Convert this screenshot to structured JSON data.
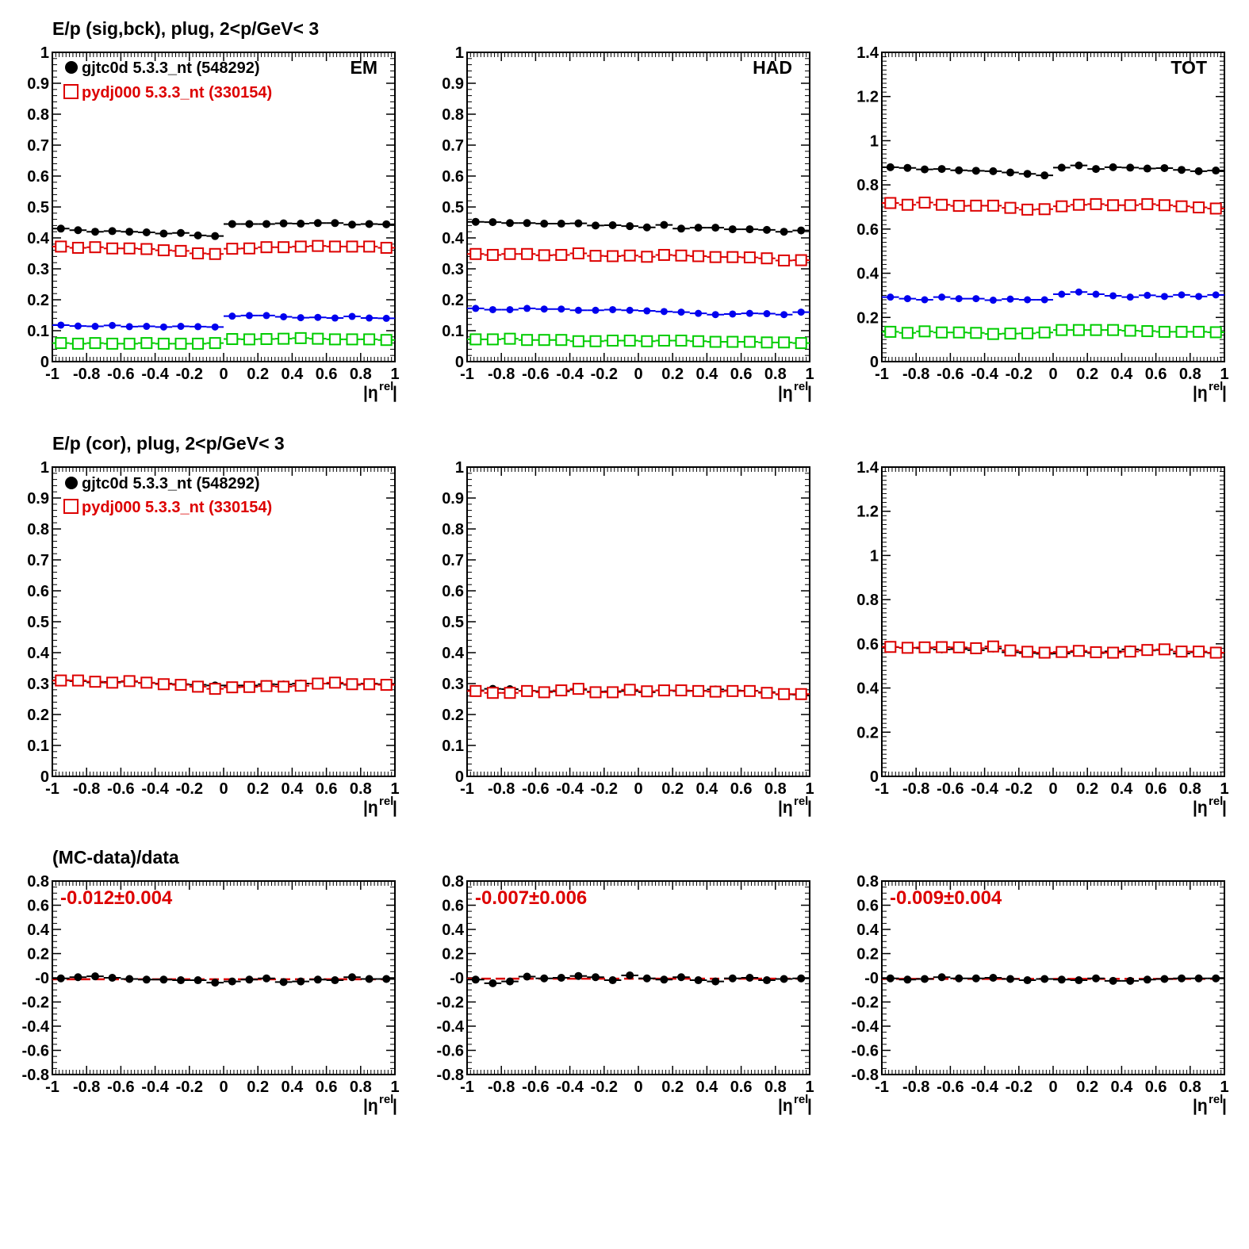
{
  "row_titles": [
    "E/p (sig,bck), plug,  2<p/GeV< 3",
    "E/p (cor), plug,  2<p/GeV< 3",
    "(MC-data)/data"
  ],
  "legend": {
    "data_label": "gjtc0d 5.3.3_nt (548292)",
    "mc_label": "pydj000 5.3.3_nt (330154)"
  },
  "axis": {
    "x_label_main": "|η",
    "x_label_sup": "rel",
    "x_label_end": "|",
    "x_tick_labels": [
      "-1",
      "-0.8",
      "-0.6",
      "-0.4",
      "-0.2",
      "0",
      "0.2",
      "0.4",
      "0.6",
      "0.8",
      "1"
    ],
    "y_tick_labels_01": [
      "0",
      "0.1",
      "0.2",
      "0.3",
      "0.4",
      "0.5",
      "0.6",
      "0.7",
      "0.8",
      "0.9",
      "1"
    ],
    "y_tick_labels_014": [
      "0",
      "0.2",
      "0.4",
      "0.6",
      "0.8",
      "1",
      "1.2",
      "1.4"
    ],
    "y_tick_labels_ratio": [
      "-0.8",
      "-0.6",
      "-0.4",
      "-0.2",
      "-0",
      "0.2",
      "0.4",
      "0.6",
      "0.8"
    ]
  },
  "colors": {
    "data": "#000000",
    "mc": "#dd0000",
    "sig_data": "#0000ee",
    "sig_mc": "#00cc00",
    "annotation": "#dd0000",
    "frame": "#000000"
  },
  "chart_data": [
    {
      "type": "scatter",
      "panel": "EM",
      "row": 0,
      "col": 0,
      "label": "EM",
      "annotation": "",
      "x_range": [
        -1,
        1
      ],
      "ylim": [
        0,
        1
      ],
      "x": [
        -0.95,
        -0.85,
        -0.75,
        -0.65,
        -0.55,
        -0.45,
        -0.35,
        -0.25,
        -0.15,
        -0.05,
        0.05,
        0.15,
        0.25,
        0.35,
        0.45,
        0.55,
        0.65,
        0.75,
        0.85,
        0.95
      ],
      "series": [
        {
          "name": "gjtc0d 5.3.3_nt (548292)",
          "marker": "filled",
          "color": "#000000",
          "values": [
            0.43,
            0.425,
            0.42,
            0.422,
            0.42,
            0.418,
            0.414,
            0.416,
            0.408,
            0.406,
            0.445,
            0.445,
            0.445,
            0.447,
            0.446,
            0.448,
            0.448,
            0.443,
            0.445,
            0.444
          ]
        },
        {
          "name": "pydj000 5.3.3_nt (330154)",
          "marker": "open",
          "color": "#dd0000",
          "values": [
            0.372,
            0.368,
            0.37,
            0.366,
            0.366,
            0.364,
            0.36,
            0.358,
            0.35,
            0.348,
            0.365,
            0.366,
            0.37,
            0.37,
            0.372,
            0.374,
            0.372,
            0.372,
            0.372,
            0.368
          ]
        },
        {
          "marker": "filled-small",
          "color": "#0000ee",
          "values": [
            0.118,
            0.115,
            0.114,
            0.117,
            0.113,
            0.114,
            0.112,
            0.114,
            0.113,
            0.112,
            0.147,
            0.149,
            0.149,
            0.145,
            0.142,
            0.143,
            0.141,
            0.146,
            0.141,
            0.14
          ]
        },
        {
          "marker": "open",
          "color": "#00cc00",
          "values": [
            0.06,
            0.058,
            0.06,
            0.058,
            0.058,
            0.06,
            0.058,
            0.058,
            0.058,
            0.06,
            0.073,
            0.072,
            0.073,
            0.074,
            0.076,
            0.074,
            0.072,
            0.072,
            0.072,
            0.07
          ]
        }
      ]
    },
    {
      "type": "scatter",
      "panel": "HAD",
      "row": 0,
      "col": 1,
      "label": "HAD",
      "annotation": "",
      "x_range": [
        -1,
        1
      ],
      "ylim": [
        0,
        1
      ],
      "x": [
        -0.95,
        -0.85,
        -0.75,
        -0.65,
        -0.55,
        -0.45,
        -0.35,
        -0.25,
        -0.15,
        -0.05,
        0.05,
        0.15,
        0.25,
        0.35,
        0.45,
        0.55,
        0.65,
        0.75,
        0.85,
        0.95
      ],
      "series": [
        {
          "name": "gjtc0d 5.3.3_nt (548292)",
          "marker": "filled",
          "color": "#000000",
          "values": [
            0.452,
            0.451,
            0.448,
            0.448,
            0.446,
            0.446,
            0.447,
            0.44,
            0.441,
            0.438,
            0.434,
            0.442,
            0.43,
            0.433,
            0.433,
            0.428,
            0.428,
            0.426,
            0.42,
            0.424
          ]
        },
        {
          "name": "pydj000 5.3.3_nt (330154)",
          "marker": "open",
          "color": "#dd0000",
          "values": [
            0.348,
            0.345,
            0.348,
            0.348,
            0.344,
            0.345,
            0.35,
            0.342,
            0.341,
            0.343,
            0.339,
            0.345,
            0.343,
            0.341,
            0.338,
            0.338,
            0.337,
            0.334,
            0.327,
            0.328
          ]
        },
        {
          "marker": "filled-small",
          "color": "#0000ee",
          "values": [
            0.172,
            0.168,
            0.168,
            0.172,
            0.17,
            0.17,
            0.166,
            0.166,
            0.168,
            0.166,
            0.164,
            0.162,
            0.16,
            0.156,
            0.152,
            0.154,
            0.156,
            0.155,
            0.152,
            0.16
          ]
        },
        {
          "marker": "open",
          "color": "#00cc00",
          "values": [
            0.072,
            0.072,
            0.074,
            0.07,
            0.07,
            0.07,
            0.066,
            0.066,
            0.068,
            0.068,
            0.066,
            0.068,
            0.068,
            0.066,
            0.064,
            0.064,
            0.064,
            0.062,
            0.062,
            0.06
          ]
        }
      ]
    },
    {
      "type": "scatter",
      "panel": "TOT",
      "row": 0,
      "col": 2,
      "label": "TOT",
      "annotation": "",
      "x_range": [
        -1,
        1
      ],
      "ylim": [
        0,
        1.4
      ],
      "x": [
        -0.95,
        -0.85,
        -0.75,
        -0.65,
        -0.55,
        -0.45,
        -0.35,
        -0.25,
        -0.15,
        -0.05,
        0.05,
        0.15,
        0.25,
        0.35,
        0.45,
        0.55,
        0.65,
        0.75,
        0.85,
        0.95
      ],
      "series": [
        {
          "name": "gjtc0d 5.3.3_nt (548292)",
          "marker": "filled",
          "color": "#000000",
          "values": [
            0.88,
            0.877,
            0.87,
            0.872,
            0.866,
            0.864,
            0.862,
            0.856,
            0.85,
            0.843,
            0.878,
            0.888,
            0.872,
            0.88,
            0.878,
            0.874,
            0.876,
            0.868,
            0.862,
            0.865
          ]
        },
        {
          "name": "pydj000 5.3.3_nt (330154)",
          "marker": "open",
          "color": "#dd0000",
          "values": [
            0.718,
            0.71,
            0.72,
            0.71,
            0.705,
            0.706,
            0.706,
            0.696,
            0.688,
            0.69,
            0.703,
            0.71,
            0.713,
            0.708,
            0.708,
            0.713,
            0.708,
            0.703,
            0.698,
            0.693
          ]
        },
        {
          "marker": "filled-small",
          "color": "#0000ee",
          "values": [
            0.292,
            0.285,
            0.28,
            0.292,
            0.285,
            0.285,
            0.278,
            0.283,
            0.28,
            0.28,
            0.305,
            0.315,
            0.305,
            0.298,
            0.292,
            0.3,
            0.295,
            0.302,
            0.295,
            0.302
          ]
        },
        {
          "marker": "open",
          "color": "#00cc00",
          "values": [
            0.135,
            0.13,
            0.137,
            0.132,
            0.132,
            0.13,
            0.125,
            0.127,
            0.128,
            0.132,
            0.143,
            0.143,
            0.143,
            0.143,
            0.14,
            0.138,
            0.135,
            0.135,
            0.135,
            0.133
          ]
        }
      ]
    },
    {
      "type": "scatter",
      "panel": "EM-cor",
      "row": 1,
      "col": 0,
      "label": "",
      "annotation": "",
      "x_range": [
        -1,
        1
      ],
      "ylim": [
        0,
        1
      ],
      "x": [
        -0.95,
        -0.85,
        -0.75,
        -0.65,
        -0.55,
        -0.45,
        -0.35,
        -0.25,
        -0.15,
        -0.05,
        0.05,
        0.15,
        0.25,
        0.35,
        0.45,
        0.55,
        0.65,
        0.75,
        0.85,
        0.95
      ],
      "series": [
        {
          "name": "gjtc0d 5.3.3_nt (548292)",
          "marker": "filled",
          "color": "#000000",
          "values": [
            0.311,
            0.308,
            0.304,
            0.305,
            0.306,
            0.302,
            0.3,
            0.298,
            0.296,
            0.294,
            0.294,
            0.294,
            0.298,
            0.297,
            0.3,
            0.3,
            0.3,
            0.296,
            0.3,
            0.298
          ]
        },
        {
          "name": "pydj000 5.3.3_nt (330154)",
          "marker": "open",
          "color": "#dd0000",
          "values": [
            0.31,
            0.31,
            0.306,
            0.303,
            0.308,
            0.303,
            0.298,
            0.296,
            0.29,
            0.283,
            0.288,
            0.289,
            0.292,
            0.29,
            0.293,
            0.3,
            0.303,
            0.298,
            0.298,
            0.296
          ]
        }
      ]
    },
    {
      "type": "scatter",
      "panel": "HAD-cor",
      "row": 1,
      "col": 1,
      "label": "",
      "annotation": "",
      "x_range": [
        -1,
        1
      ],
      "ylim": [
        0,
        1
      ],
      "x": [
        -0.95,
        -0.85,
        -0.75,
        -0.65,
        -0.55,
        -0.45,
        -0.35,
        -0.25,
        -0.15,
        -0.05,
        0.05,
        0.15,
        0.25,
        0.35,
        0.45,
        0.55,
        0.65,
        0.75,
        0.85,
        0.95
      ],
      "series": [
        {
          "name": "gjtc0d 5.3.3_nt (548292)",
          "marker": "filled",
          "color": "#000000",
          "values": [
            0.278,
            0.283,
            0.282,
            0.277,
            0.275,
            0.275,
            0.28,
            0.274,
            0.275,
            0.276,
            0.272,
            0.278,
            0.276,
            0.277,
            0.281,
            0.278,
            0.277,
            0.272,
            0.265,
            0.264
          ]
        },
        {
          "name": "pydj000 5.3.3_nt (330154)",
          "marker": "open",
          "color": "#dd0000",
          "values": [
            0.276,
            0.27,
            0.27,
            0.276,
            0.272,
            0.278,
            0.283,
            0.272,
            0.272,
            0.28,
            0.275,
            0.278,
            0.278,
            0.276,
            0.274,
            0.276,
            0.276,
            0.27,
            0.266,
            0.266
          ]
        }
      ]
    },
    {
      "type": "scatter",
      "panel": "TOT-cor",
      "row": 1,
      "col": 2,
      "label": "",
      "annotation": "",
      "x_range": [
        -1,
        1
      ],
      "ylim": [
        0,
        1.4
      ],
      "x": [
        -0.95,
        -0.85,
        -0.75,
        -0.65,
        -0.55,
        -0.45,
        -0.35,
        -0.25,
        -0.15,
        -0.05,
        0.05,
        0.15,
        0.25,
        0.35,
        0.45,
        0.55,
        0.65,
        0.75,
        0.85,
        0.95
      ],
      "series": [
        {
          "name": "gjtc0d 5.3.3_nt (548292)",
          "marker": "filled",
          "color": "#000000",
          "values": [
            0.585,
            0.582,
            0.58,
            0.575,
            0.576,
            0.571,
            0.579,
            0.562,
            0.558,
            0.555,
            0.556,
            0.563,
            0.558,
            0.566,
            0.575,
            0.57,
            0.572,
            0.556,
            0.562,
            0.558
          ]
        },
        {
          "name": "pydj000 5.3.3_nt (330154)",
          "marker": "open",
          "color": "#dd0000",
          "values": [
            0.586,
            0.582,
            0.584,
            0.585,
            0.584,
            0.58,
            0.588,
            0.57,
            0.564,
            0.56,
            0.563,
            0.568,
            0.562,
            0.56,
            0.565,
            0.572,
            0.575,
            0.565,
            0.565,
            0.56
          ]
        }
      ]
    },
    {
      "type": "scatter",
      "panel": "EM-ratio",
      "row": 2,
      "col": 0,
      "label": "",
      "annotation": "-0.012±0.004",
      "x_range": [
        -1,
        1
      ],
      "ylim": [
        -0.8,
        0.8
      ],
      "reference_line": -0.012,
      "x": [
        -0.95,
        -0.85,
        -0.75,
        -0.65,
        -0.55,
        -0.45,
        -0.35,
        -0.25,
        -0.15,
        -0.05,
        0.05,
        0.15,
        0.25,
        0.35,
        0.45,
        0.55,
        0.65,
        0.75,
        0.85,
        0.95
      ],
      "series": [
        {
          "marker": "filled",
          "color": "#000000",
          "values": [
            -0.005,
            0.005,
            0.012,
            0.0,
            -0.01,
            -0.015,
            -0.015,
            -0.02,
            -0.02,
            -0.04,
            -0.03,
            -0.015,
            -0.005,
            -0.035,
            -0.03,
            -0.015,
            -0.02,
            0.005,
            -0.01,
            -0.01
          ]
        }
      ]
    },
    {
      "type": "scatter",
      "panel": "HAD-ratio",
      "row": 2,
      "col": 1,
      "label": "",
      "annotation": "-0.007±0.006",
      "x_range": [
        -1,
        1
      ],
      "ylim": [
        -0.8,
        0.8
      ],
      "reference_line": -0.007,
      "x": [
        -0.95,
        -0.85,
        -0.75,
        -0.65,
        -0.55,
        -0.45,
        -0.35,
        -0.25,
        -0.15,
        -0.05,
        0.05,
        0.15,
        0.25,
        0.35,
        0.45,
        0.55,
        0.65,
        0.75,
        0.85,
        0.95
      ],
      "series": [
        {
          "marker": "filled",
          "color": "#000000",
          "values": [
            -0.015,
            -0.045,
            -0.03,
            0.01,
            -0.005,
            0.0,
            0.015,
            0.005,
            -0.02,
            0.02,
            -0.005,
            -0.015,
            0.005,
            -0.02,
            -0.03,
            -0.005,
            0.0,
            -0.02,
            -0.01,
            -0.005
          ]
        }
      ]
    },
    {
      "type": "scatter",
      "panel": "TOT-ratio",
      "row": 2,
      "col": 2,
      "label": "",
      "annotation": "-0.009±0.004",
      "x_range": [
        -1,
        1
      ],
      "ylim": [
        -0.8,
        0.8
      ],
      "reference_line": -0.009,
      "x": [
        -0.95,
        -0.85,
        -0.75,
        -0.65,
        -0.55,
        -0.45,
        -0.35,
        -0.25,
        -0.15,
        -0.05,
        0.05,
        0.15,
        0.25,
        0.35,
        0.45,
        0.55,
        0.65,
        0.75,
        0.85,
        0.95
      ],
      "series": [
        {
          "marker": "filled",
          "color": "#000000",
          "values": [
            -0.005,
            -0.015,
            -0.01,
            0.005,
            -0.005,
            -0.005,
            0.0,
            -0.01,
            -0.02,
            -0.01,
            -0.015,
            -0.02,
            -0.005,
            -0.025,
            -0.025,
            -0.015,
            -0.01,
            -0.005,
            -0.005,
            -0.005
          ]
        }
      ]
    }
  ]
}
